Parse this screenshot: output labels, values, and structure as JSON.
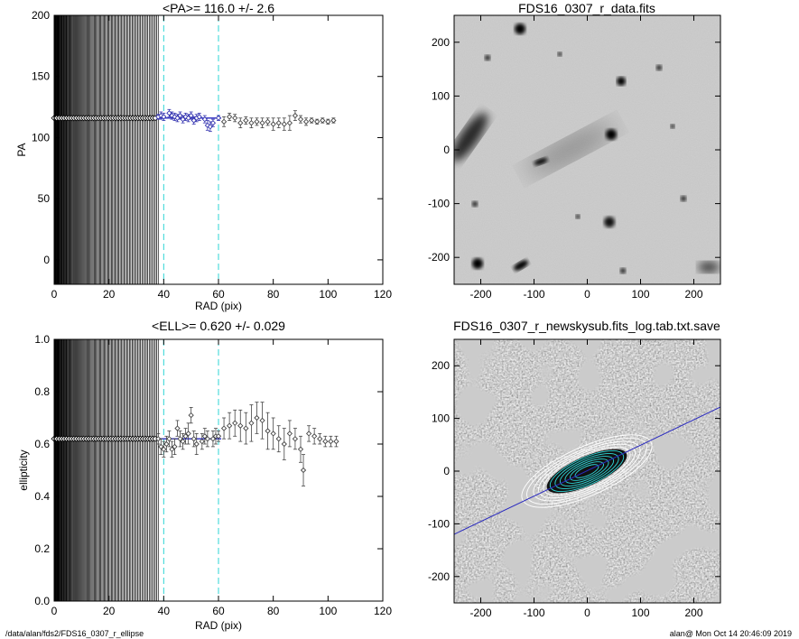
{
  "chart_data": [
    {
      "type": "scatter",
      "title": "<PA>= 116.0 +/-   2.6",
      "xlabel": "RAD (pix)",
      "ylabel": "PA",
      "xlim": [
        0,
        120
      ],
      "ylim": [
        -20,
        200
      ],
      "xticks": [
        0,
        20,
        40,
        60,
        80,
        100,
        120
      ],
      "yticks": [
        0,
        50,
        100,
        150,
        200
      ],
      "vlines": [
        40,
        60
      ],
      "mean_line": {
        "x0": 38,
        "x1": 61,
        "y": 116
      },
      "series": [
        {
          "values": [
            {
              "x": 38,
              "y": 117,
              "err": 2
            },
            {
              "x": 39,
              "y": 118,
              "err": 3
            },
            {
              "x": 40,
              "y": 117,
              "err": 3
            },
            {
              "x": 42,
              "y": 120,
              "err": 3
            },
            {
              "x": 43,
              "y": 118,
              "err": 3
            },
            {
              "x": 44,
              "y": 117,
              "err": 3
            },
            {
              "x": 45,
              "y": 116,
              "err": 3
            },
            {
              "x": 46,
              "y": 118,
              "err": 3
            },
            {
              "x": 47,
              "y": 115,
              "err": 3
            },
            {
              "x": 48,
              "y": 117,
              "err": 3
            },
            {
              "x": 49,
              "y": 116,
              "err": 3
            },
            {
              "x": 50,
              "y": 118,
              "err": 3
            },
            {
              "x": 51,
              "y": 114,
              "err": 3
            },
            {
              "x": 52,
              "y": 116,
              "err": 3
            },
            {
              "x": 53,
              "y": 117,
              "err": 3
            },
            {
              "x": 55,
              "y": 115,
              "err": 3
            },
            {
              "x": 56,
              "y": 110,
              "err": 4
            },
            {
              "x": 57,
              "y": 109,
              "err": 4
            },
            {
              "x": 58,
              "y": 112,
              "err": 3
            },
            {
              "x": 60,
              "y": 116,
              "err": 2
            },
            {
              "x": 62,
              "y": 113,
              "err": 4
            },
            {
              "x": 64,
              "y": 117,
              "err": 3
            },
            {
              "x": 66,
              "y": 116,
              "err": 3
            },
            {
              "x": 68,
              "y": 112,
              "err": 4
            },
            {
              "x": 70,
              "y": 114,
              "err": 3
            },
            {
              "x": 72,
              "y": 112,
              "err": 4
            },
            {
              "x": 74,
              "y": 113,
              "err": 3
            },
            {
              "x": 76,
              "y": 112,
              "err": 4
            },
            {
              "x": 78,
              "y": 113,
              "err": 3
            },
            {
              "x": 80,
              "y": 111,
              "err": 5
            },
            {
              "x": 82,
              "y": 112,
              "err": 4
            },
            {
              "x": 84,
              "y": 111,
              "err": 5
            },
            {
              "x": 86,
              "y": 112,
              "err": 6
            },
            {
              "x": 88,
              "y": 118,
              "err": 4
            },
            {
              "x": 90,
              "y": 115,
              "err": 3
            },
            {
              "x": 92,
              "y": 113,
              "err": 3
            },
            {
              "x": 94,
              "y": 114,
              "err": 2
            },
            {
              "x": 96,
              "y": 113,
              "err": 2
            },
            {
              "x": 98,
              "y": 114,
              "err": 2
            },
            {
              "x": 100,
              "y": 113,
              "err": 2
            },
            {
              "x": 102,
              "y": 114,
              "err": 2
            }
          ]
        }
      ]
    },
    {
      "type": "scatter",
      "title": "<ELL>= 0.620 +/-  0.029",
      "xlabel": "RAD (pix)",
      "ylabel": "ellipticity",
      "xlim": [
        0,
        120
      ],
      "ylim": [
        0,
        1
      ],
      "xticks": [
        0,
        20,
        40,
        60,
        80,
        100,
        120
      ],
      "yticks": [
        0.0,
        0.2,
        0.4,
        0.6,
        0.8,
        1.0
      ],
      "vlines": [
        40,
        60
      ],
      "mean_line": {
        "x0": 38,
        "x1": 61,
        "y": 0.62
      },
      "series": [
        {
          "values": [
            {
              "x": 38,
              "y": 0.62,
              "err": 0.02
            },
            {
              "x": 39,
              "y": 0.59,
              "err": 0.03
            },
            {
              "x": 40,
              "y": 0.58,
              "err": 0.03
            },
            {
              "x": 41,
              "y": 0.6,
              "err": 0.03
            },
            {
              "x": 42,
              "y": 0.62,
              "err": 0.03
            },
            {
              "x": 43,
              "y": 0.58,
              "err": 0.03
            },
            {
              "x": 44,
              "y": 0.59,
              "err": 0.03
            },
            {
              "x": 45,
              "y": 0.66,
              "err": 0.03
            },
            {
              "x": 46,
              "y": 0.62,
              "err": 0.03
            },
            {
              "x": 47,
              "y": 0.61,
              "err": 0.03
            },
            {
              "x": 48,
              "y": 0.63,
              "err": 0.03
            },
            {
              "x": 49,
              "y": 0.64,
              "err": 0.04
            },
            {
              "x": 50,
              "y": 0.71,
              "err": 0.03
            },
            {
              "x": 51,
              "y": 0.62,
              "err": 0.03
            },
            {
              "x": 52,
              "y": 0.6,
              "err": 0.04
            },
            {
              "x": 54,
              "y": 0.61,
              "err": 0.03
            },
            {
              "x": 55,
              "y": 0.63,
              "err": 0.03
            },
            {
              "x": 56,
              "y": 0.62,
              "err": 0.03
            },
            {
              "x": 58,
              "y": 0.62,
              "err": 0.03
            },
            {
              "x": 59,
              "y": 0.63,
              "err": 0.03
            },
            {
              "x": 60,
              "y": 0.63,
              "err": 0.02
            },
            {
              "x": 62,
              "y": 0.66,
              "err": 0.04
            },
            {
              "x": 64,
              "y": 0.67,
              "err": 0.05
            },
            {
              "x": 66,
              "y": 0.68,
              "err": 0.05
            },
            {
              "x": 68,
              "y": 0.67,
              "err": 0.06
            },
            {
              "x": 70,
              "y": 0.66,
              "err": 0.06
            },
            {
              "x": 72,
              "y": 0.68,
              "err": 0.07
            },
            {
              "x": 74,
              "y": 0.7,
              "err": 0.06
            },
            {
              "x": 76,
              "y": 0.69,
              "err": 0.07
            },
            {
              "x": 78,
              "y": 0.65,
              "err": 0.07
            },
            {
              "x": 80,
              "y": 0.64,
              "err": 0.06
            },
            {
              "x": 82,
              "y": 0.62,
              "err": 0.05
            },
            {
              "x": 84,
              "y": 0.6,
              "err": 0.06
            },
            {
              "x": 86,
              "y": 0.64,
              "err": 0.05
            },
            {
              "x": 88,
              "y": 0.62,
              "err": 0.04
            },
            {
              "x": 90,
              "y": 0.58,
              "err": 0.05
            },
            {
              "x": 91,
              "y": 0.5,
              "err": 0.06
            },
            {
              "x": 93,
              "y": 0.64,
              "err": 0.03
            },
            {
              "x": 95,
              "y": 0.63,
              "err": 0.03
            },
            {
              "x": 97,
              "y": 0.62,
              "err": 0.02
            },
            {
              "x": 99,
              "y": 0.61,
              "err": 0.02
            },
            {
              "x": 101,
              "y": 0.61,
              "err": 0.02
            },
            {
              "x": 103,
              "y": 0.61,
              "err": 0.02
            }
          ]
        }
      ]
    },
    {
      "type": "heatmap",
      "title": "FDS16_0307_r_data.fits",
      "xlim": [
        -250,
        250
      ],
      "ylim": [
        -250,
        250
      ],
      "xticks": [
        -200,
        -100,
        0,
        100,
        200
      ],
      "yticks": [
        -200,
        -100,
        0,
        100,
        200
      ]
    },
    {
      "type": "heatmap",
      "title": "FDS16_0307_r_newskysub.fits_log.tab.txt.save",
      "xlim": [
        -250,
        250
      ],
      "ylim": [
        -250,
        250
      ],
      "xticks": [
        -200,
        -100,
        0,
        100,
        200
      ],
      "yticks": [
        -200,
        -100,
        0,
        100,
        200
      ]
    }
  ],
  "footer": {
    "left": "/data/alan/fds2/FDS16_0307_r_ellipse",
    "right": "alan@  Mon Oct 14 20:46:09 2019"
  }
}
